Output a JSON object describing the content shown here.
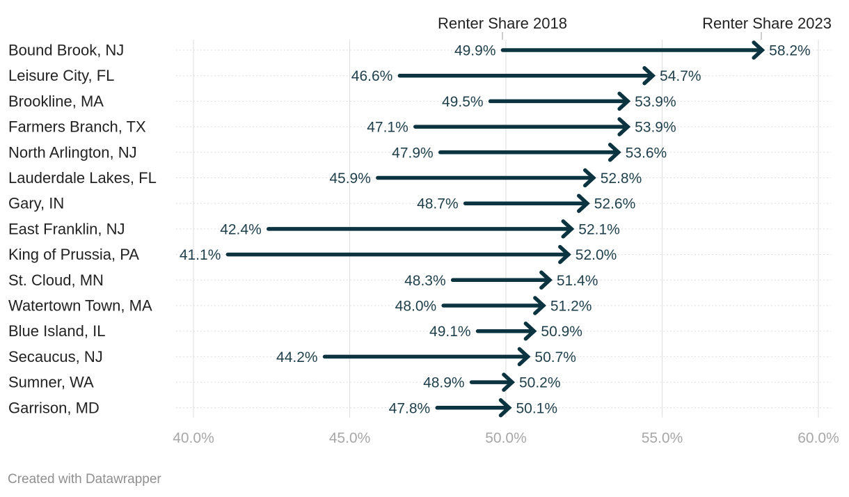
{
  "chart_data": {
    "type": "arrow",
    "series_start_label": "Renter Share 2018",
    "series_end_label": "Renter Share 2023",
    "categories": [
      "Bound Brook, NJ",
      "Leisure City, FL",
      "Brookline, MA",
      "Farmers Branch, TX",
      "North Arlington, NJ",
      "Lauderdale Lakes, FL",
      "Gary, IN",
      "East Franklin, NJ",
      "King of Prussia, PA",
      "St. Cloud, MN",
      "Watertown Town, MA",
      "Blue Island, IL",
      "Secaucus, NJ",
      "Sumner, WA",
      "Garrison, MD"
    ],
    "start_values": [
      49.9,
      46.6,
      49.5,
      47.1,
      47.9,
      45.9,
      48.7,
      42.4,
      41.1,
      48.3,
      48.0,
      49.1,
      44.2,
      48.9,
      47.8
    ],
    "end_values": [
      58.2,
      54.7,
      53.9,
      53.9,
      53.6,
      52.8,
      52.6,
      52.1,
      52.0,
      51.4,
      51.2,
      50.9,
      50.7,
      50.2,
      50.1
    ],
    "start_labels": [
      "49.9%",
      "46.6%",
      "49.5%",
      "47.1%",
      "47.9%",
      "45.9%",
      "48.7%",
      "42.4%",
      "41.1%",
      "48.3%",
      "48.0%",
      "49.1%",
      "44.2%",
      "48.9%",
      "47.8%"
    ],
    "end_labels": [
      "58.2%",
      "54.7%",
      "53.9%",
      "53.9%",
      "53.6%",
      "52.8%",
      "52.6%",
      "52.1%",
      "52.0%",
      "51.4%",
      "51.2%",
      "50.9%",
      "50.7%",
      "50.2%",
      "50.1%"
    ],
    "x_ticks": [
      40,
      45,
      50,
      55,
      60
    ],
    "x_tick_labels": [
      "40.0%",
      "45.0%",
      "50.0%",
      "55.0%",
      "60.0%"
    ],
    "xlim": [
      40,
      60
    ],
    "grid": true
  },
  "colors": {
    "arrow": "#0b3440",
    "value_label": "#1f3f4a",
    "grid": "#dddddd",
    "tick": "#a7a7a7"
  },
  "footer": {
    "credit": "Created with Datawrapper"
  }
}
